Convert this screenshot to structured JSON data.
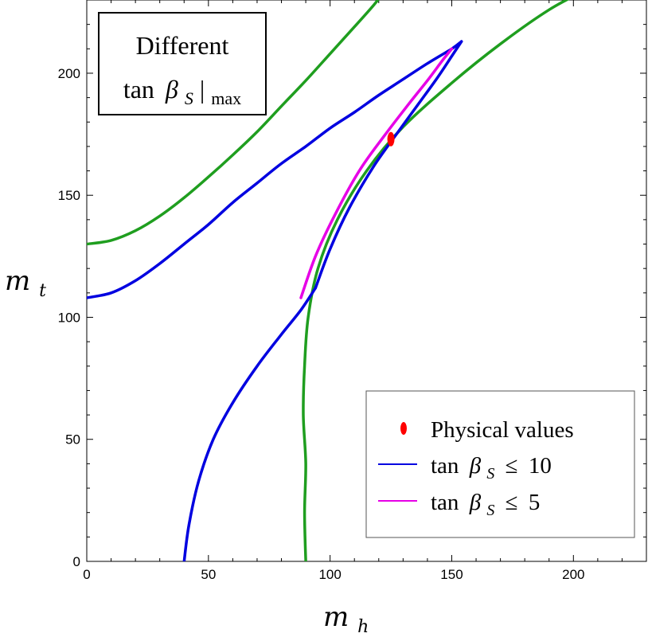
{
  "chart_data": {
    "type": "line",
    "xlabel": "m",
    "xlabel_sub": "h",
    "ylabel": "m",
    "ylabel_sub": "t",
    "xlim": [
      0,
      230
    ],
    "ylim": [
      0,
      230
    ],
    "xticks": [
      0,
      50,
      100,
      150,
      200
    ],
    "yticks": [
      0,
      50,
      100,
      150,
      200
    ],
    "tick_labels_x": [
      "0",
      "50",
      "100",
      "150",
      "200"
    ],
    "tick_labels_y": [
      "0",
      "50",
      "100",
      "150",
      "200"
    ],
    "annotation": {
      "line1": "Different",
      "line2_func": "tan",
      "line2_beta": "β",
      "line2_sub": "S",
      "line2_bar": "|",
      "line2_max": "max"
    },
    "legend": {
      "placement": "bottom-right",
      "items": [
        {
          "marker": "dot",
          "text": "Physical values"
        },
        {
          "marker": "line",
          "func": "tan",
          "beta": "β",
          "sub": "S",
          "rel": "≤",
          "value": "10"
        },
        {
          "marker": "line",
          "func": "tan",
          "beta": "β",
          "sub": "S",
          "rel": "≤",
          "value": "5"
        }
      ]
    },
    "colors": {
      "green": "#1f9e1f",
      "blue": "#0000e0",
      "magenta": "#e600e6",
      "red": "#ff0000"
    },
    "series": [
      {
        "color": "green",
        "points": [
          [
            0,
            130
          ],
          [
            10,
            131.5
          ],
          [
            20,
            135.5
          ],
          [
            30,
            141.5
          ],
          [
            40,
            149
          ],
          [
            50,
            157.5
          ],
          [
            60,
            166.5
          ],
          [
            70,
            176
          ],
          [
            80,
            186.5
          ],
          [
            90,
            197
          ],
          [
            100,
            208
          ],
          [
            110,
            219
          ],
          [
            118,
            228
          ],
          [
            121,
            232
          ]
        ]
      },
      {
        "color": "green",
        "points": [
          [
            90,
            0
          ],
          [
            89.5,
            20
          ],
          [
            90,
            40
          ],
          [
            89,
            60
          ],
          [
            89.5,
            80
          ],
          [
            91,
            100
          ],
          [
            95,
            120
          ],
          [
            103,
            140
          ],
          [
            115,
            160
          ],
          [
            130,
            178
          ],
          [
            150,
            196
          ],
          [
            170,
            212
          ],
          [
            190,
            226
          ],
          [
            205,
            234
          ]
        ]
      },
      {
        "color": "blue",
        "points": [
          [
            0,
            108
          ],
          [
            10,
            110
          ],
          [
            20,
            115
          ],
          [
            30,
            122
          ],
          [
            40,
            130
          ],
          [
            50,
            138
          ],
          [
            60,
            147
          ],
          [
            70,
            155
          ],
          [
            80,
            163
          ],
          [
            90,
            170
          ],
          [
            100,
            177.5
          ],
          [
            110,
            184
          ],
          [
            120,
            191
          ],
          [
            130,
            197.5
          ],
          [
            140,
            204
          ],
          [
            150,
            210
          ],
          [
            154,
            213
          ]
        ]
      },
      {
        "color": "blue",
        "points": [
          [
            40,
            0
          ],
          [
            42,
            15
          ],
          [
            46,
            33
          ],
          [
            52,
            50
          ],
          [
            60,
            65
          ],
          [
            70,
            80
          ],
          [
            80,
            93
          ],
          [
            88,
            103
          ],
          [
            94,
            112
          ]
        ]
      },
      {
        "color": "blue",
        "points": [
          [
            94,
            112
          ],
          [
            100,
            128
          ],
          [
            108,
            145
          ],
          [
            118,
            162
          ],
          [
            128,
            176
          ],
          [
            136,
            187
          ],
          [
            144,
            198
          ],
          [
            150,
            207
          ],
          [
            154,
            213
          ]
        ]
      },
      {
        "color": "magenta",
        "points": [
          [
            88,
            108
          ],
          [
            94,
            125
          ],
          [
            102,
            142
          ],
          [
            112,
            160
          ],
          [
            122,
            174
          ],
          [
            132,
            187
          ],
          [
            140,
            197
          ],
          [
            146,
            205
          ],
          [
            150,
            210
          ]
        ]
      }
    ],
    "points": [
      {
        "color": "red",
        "x": 125,
        "y": 173
      }
    ]
  }
}
